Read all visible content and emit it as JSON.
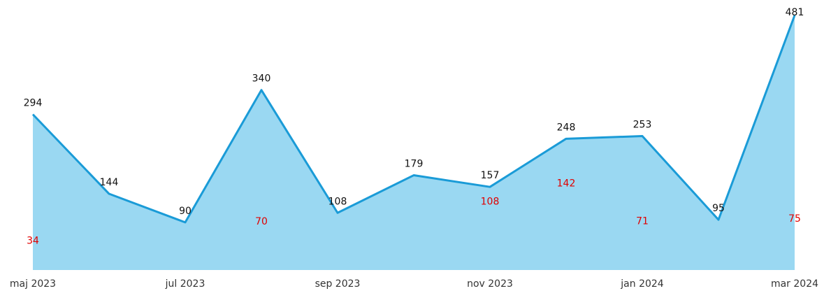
{
  "chart_data": {
    "type": "area",
    "categories": [
      "maj 2023",
      null,
      "jul 2023",
      null,
      "sep 2023",
      null,
      "nov 2023",
      null,
      "jan 2024",
      null,
      "mar 2024"
    ],
    "series": [
      {
        "color": "#1a9bd7",
        "fill": "#9ad8f2",
        "values": [
          294,
          144,
          90,
          340,
          108,
          179,
          157,
          248,
          253,
          95,
          481
        ]
      },
      {
        "color": "#e00000",
        "values": [
          34,
          null,
          null,
          70,
          null,
          null,
          108,
          142,
          71,
          null,
          75
        ]
      }
    ]
  }
}
